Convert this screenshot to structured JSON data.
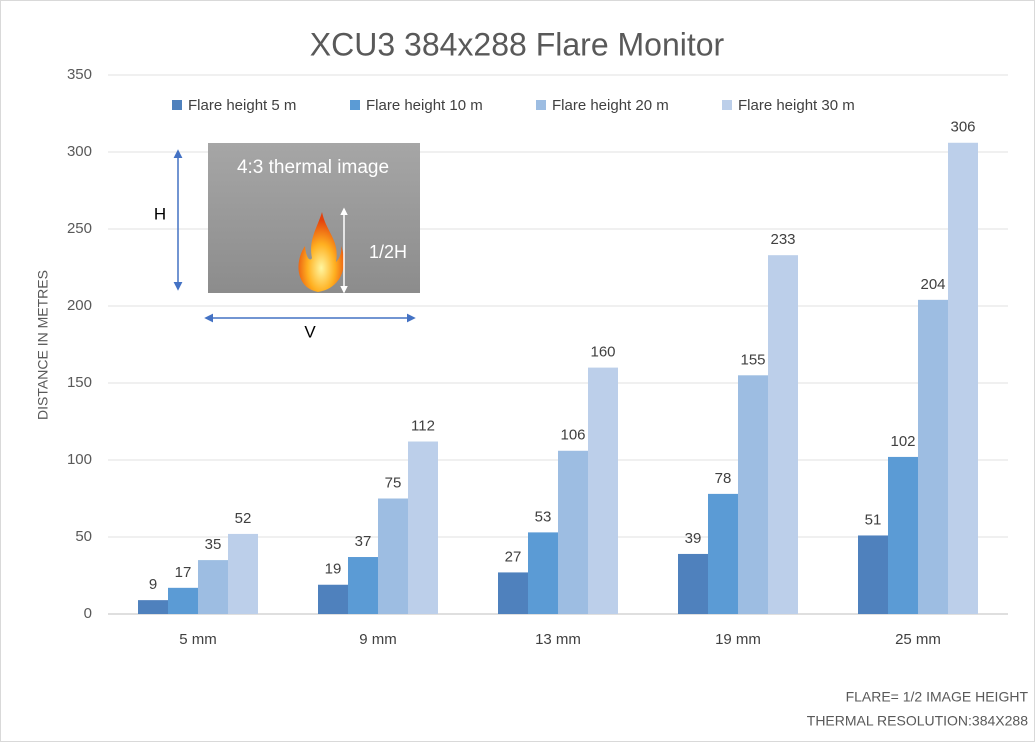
{
  "chart_data": {
    "type": "bar",
    "title": "XCU3 384x288 Flare Monitor",
    "y_label": "DISTANCE IN METRES",
    "categories": [
      "5 mm",
      "9 mm",
      "13 mm",
      "19 mm",
      "25 mm"
    ],
    "series": [
      {
        "name": "Flare height 5 m",
        "color": "#4f81bd",
        "values": [
          9,
          19,
          27,
          39,
          51
        ]
      },
      {
        "name": "Flare height 10 m",
        "color": "#5b9bd5",
        "values": [
          17,
          37,
          53,
          78,
          102
        ]
      },
      {
        "name": "Flare height 20 m",
        "color": "#9dbde2",
        "values": [
          35,
          75,
          106,
          155,
          204
        ]
      },
      {
        "name": "Flare height 30 m",
        "color": "#bccfea",
        "values": [
          52,
          112,
          160,
          233,
          306
        ]
      }
    ],
    "ylim": [
      0,
      350
    ],
    "yticks": [
      0,
      50,
      100,
      150,
      200,
      250,
      300,
      350
    ],
    "grid": true,
    "legend": "top",
    "inset": {
      "title": "4:3 thermal image",
      "h_label": "H",
      "v_label": "V",
      "half_label": "1/2H"
    },
    "notes": [
      "FLARE= 1/2 IMAGE HEIGHT",
      "THERMAL RESOLUTION:384X288"
    ]
  }
}
